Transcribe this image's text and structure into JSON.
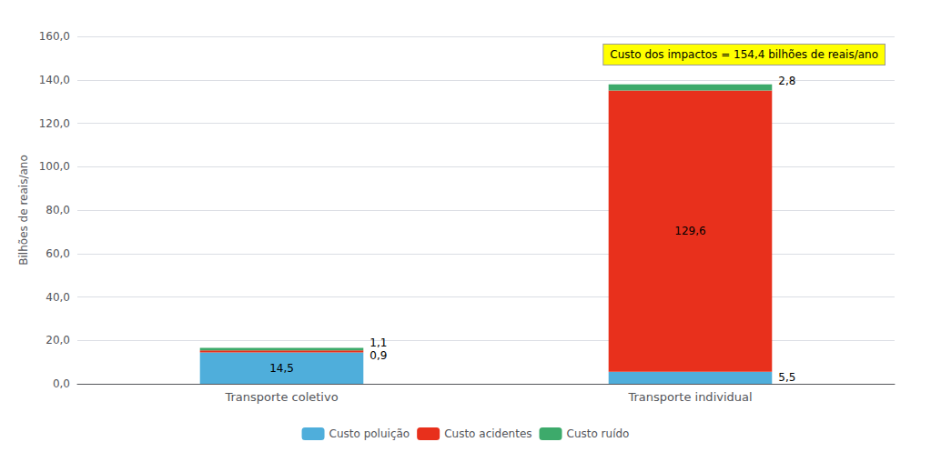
{
  "chart_data": {
    "type": "bar",
    "stacked": true,
    "categories": [
      "Transporte coletivo",
      "Transporte individual"
    ],
    "series": [
      {
        "name": "Custo poluição",
        "color": "#4FAEDB",
        "values": [
          14.5,
          5.5
        ],
        "value_labels": [
          "14,5",
          "5,5"
        ]
      },
      {
        "name": "Custo acidentes",
        "color": "#E8301C",
        "values": [
          0.9,
          129.6
        ],
        "value_labels": [
          "0,9",
          "129,6"
        ]
      },
      {
        "name": "Custo ruído",
        "color": "#3DAA6B",
        "values": [
          1.1,
          2.8
        ],
        "value_labels": [
          "1,1",
          "2,8"
        ]
      }
    ],
    "ylabel": "Bilhões de reais/ano",
    "ylim": [
      0,
      160
    ],
    "yticks": [
      {
        "value": 0,
        "label": "0,0"
      },
      {
        "value": 20,
        "label": "20,0"
      },
      {
        "value": 40,
        "label": "40,0"
      },
      {
        "value": 60,
        "label": "60,0"
      },
      {
        "value": 80,
        "label": "80,0"
      },
      {
        "value": 100,
        "label": "100,0"
      },
      {
        "value": 120,
        "label": "120,0"
      },
      {
        "value": 140,
        "label": "140,0"
      },
      {
        "value": 160,
        "label": "160,0"
      }
    ],
    "annotation": {
      "text": "Custo dos impactos = 154,4 bilhões de reais/ano",
      "color": "#FFFF00"
    },
    "data_labels": true,
    "grid": true,
    "legend": "bottom"
  }
}
